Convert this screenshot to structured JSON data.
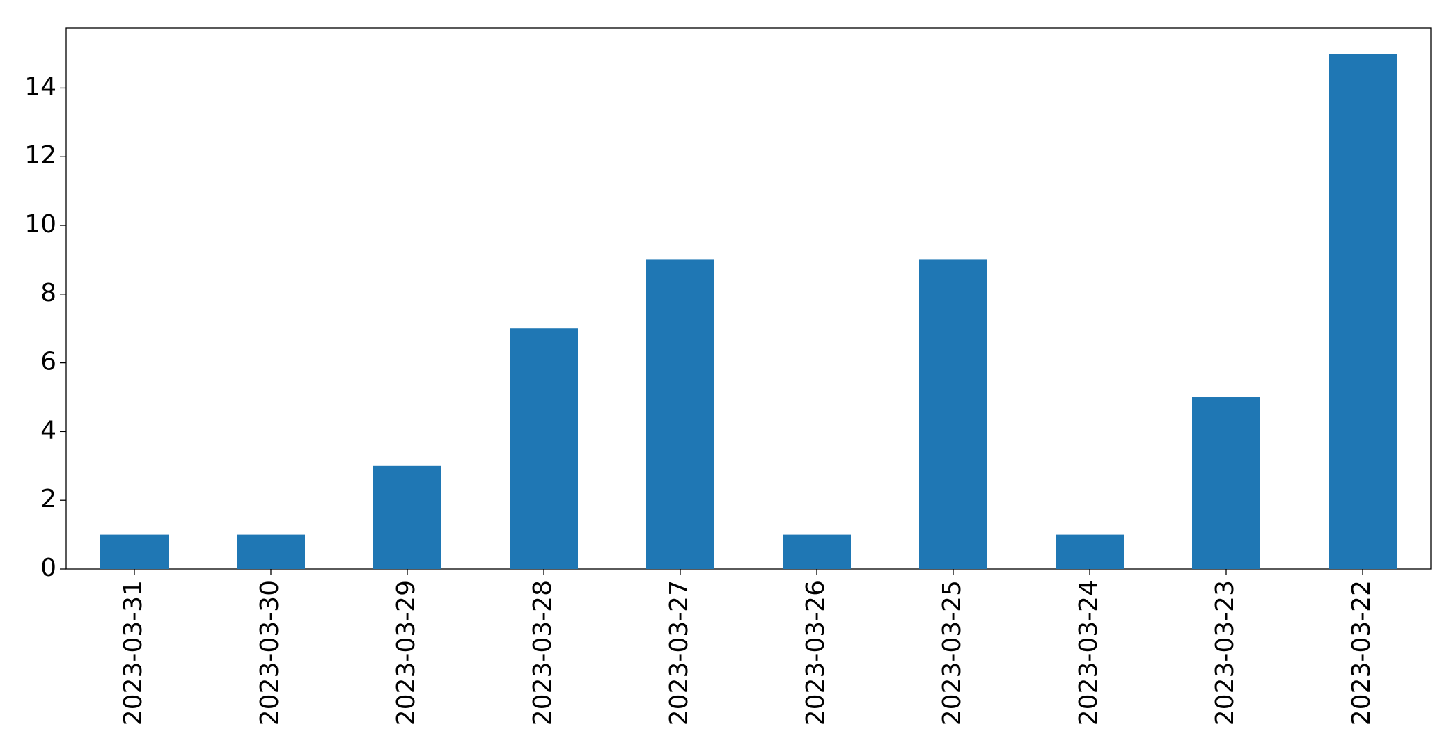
{
  "chart_data": {
    "type": "bar",
    "categories": [
      "2023-03-31",
      "2023-03-30",
      "2023-03-29",
      "2023-03-28",
      "2023-03-27",
      "2023-03-26",
      "2023-03-25",
      "2023-03-24",
      "2023-03-23",
      "2023-03-22"
    ],
    "values": [
      1,
      1,
      3,
      7,
      9,
      1,
      9,
      1,
      5,
      15
    ],
    "color": "#1f77b4",
    "ylim": [
      0,
      15.75
    ],
    "yticks": [
      0,
      2,
      4,
      6,
      8,
      10,
      12,
      14
    ],
    "grid": false
  }
}
